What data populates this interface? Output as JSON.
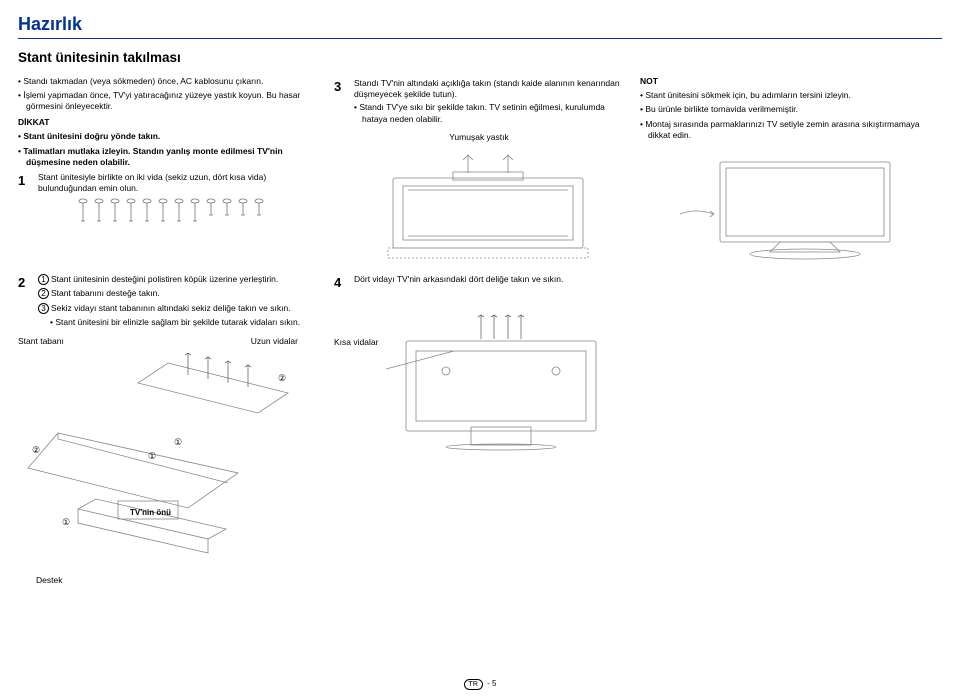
{
  "title": "Hazırlık",
  "subtitle": "Stant ünitesinin takılması",
  "intro": [
    "Standı takmadan (veya sökmeden) önce, AC kablosunu çıkarın.",
    "İşlemi yapmadan önce, TV'yi yatıracağınız yüzeye yastık koyun. Bu hasar görmesini önleyecektir."
  ],
  "dikkat_title": "DİKKAT",
  "dikkat_items": [
    "Stant ünitesini doğru yönde takın.",
    "Talimatları mutlaka izleyin. Standın yanlış monte edilmesi TV'nin düşmesine neden olabilir."
  ],
  "step1": "Stant ünitesiyle birlikte on iki vida (sekiz uzun, dört kısa vida) bulunduğundan emin olun.",
  "step2_items": [
    "Stant ünitesinin desteğini polistiren köpük üzerine yerleştirin.",
    "Stant tabanını desteğe takın.",
    "Sekiz vidayı stant tabanının altındaki sekiz deliğe takın ve sıkın."
  ],
  "step2_sub": "Stant ünitesini bir elinizle sağlam bir şekilde tutarak vidaları sıkın.",
  "label_stant_tabani": "Stant tabanı",
  "label_uzun_vidalar": "Uzun vidalar",
  "label_tv_onu": "TV'nin önü",
  "label_destek": "Destek",
  "step3": "Standı TV'nin altındaki açıklığa takın (standı kaide alanının kenarından düşmeyecek şekilde tutun).",
  "step3_items": [
    "Standı TV'ye sıkı bir şekilde takın. TV setinin eğilmesi, kurulumda hataya neden olabilir."
  ],
  "label_yumusak": "Yumuşak yastık",
  "step4": "Dört vidayı TV'nin arkasındaki dört deliğe takın ve sıkın.",
  "label_kisa_vidalar": "Kısa vidalar",
  "not_title": "NOT",
  "not_items": [
    "Stant ünitesini sökmek için, bu adımların tersini izleyin.",
    "Bu ürünle birlikte tornavida verilmemiştir.",
    "Montaj sırasında parmaklarınızı TV setiyle zemin arasına sıkıştırmamaya dikkat edin."
  ],
  "page_region": "TR",
  "page_num": "5"
}
